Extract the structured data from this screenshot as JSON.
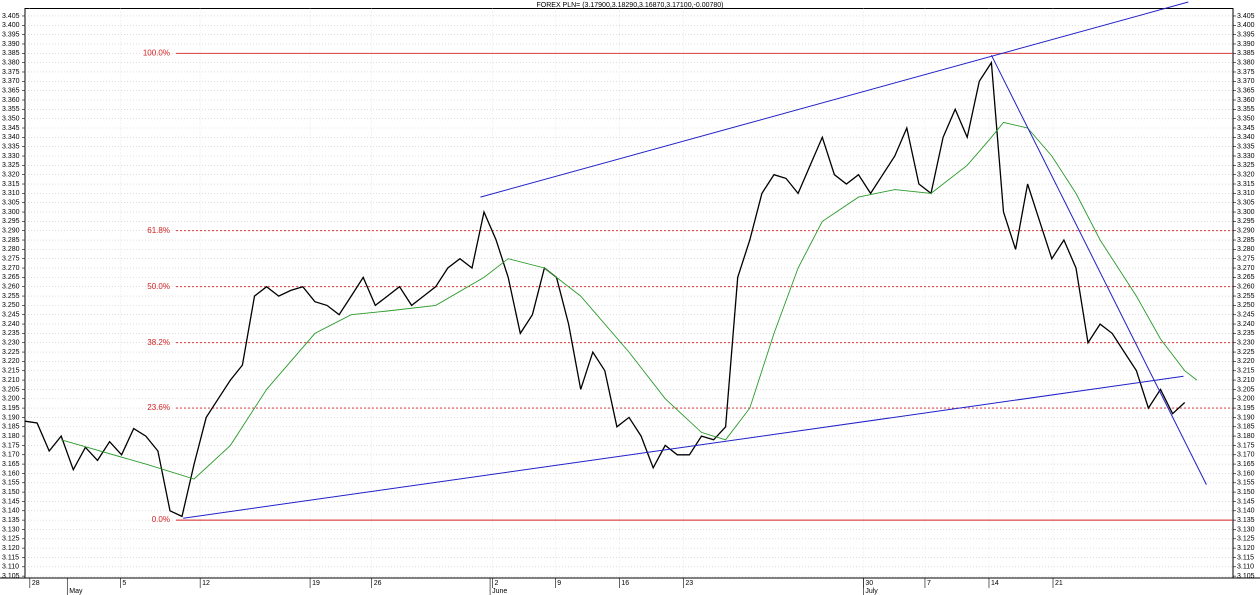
{
  "chart_data": {
    "type": "line",
    "title": "FOREX PLN= (3.17900,3.18290,3.16870,3.17100,-0.00780)",
    "xlim": [
      0,
      100
    ],
    "ylim": [
      3.104,
      3.409
    ],
    "xticks": [
      {
        "value": 0.4,
        "label": "28"
      },
      {
        "value": 7.9,
        "label": "5"
      },
      {
        "value": 14.5,
        "label": "12"
      },
      {
        "value": 23.6,
        "label": "19"
      },
      {
        "value": 28.7,
        "label": "26"
      },
      {
        "value": 38.7,
        "label": "2"
      },
      {
        "value": 43.9,
        "label": "9"
      },
      {
        "value": 49.2,
        "label": "16"
      },
      {
        "value": 54.5,
        "label": "23"
      },
      {
        "value": 69.4,
        "label": "30"
      },
      {
        "value": 74.5,
        "label": "7"
      },
      {
        "value": 79.8,
        "label": "14"
      },
      {
        "value": 85.1,
        "label": "21"
      }
    ],
    "month_ticks": [
      {
        "value": 3.5,
        "label": "May"
      },
      {
        "value": 38.5,
        "label": "June"
      },
      {
        "value": 69.4,
        "label": "July"
      }
    ],
    "yticks": [
      3.105,
      {
        "value": 3.11,
        "label": "3.110"
      },
      3.115,
      {
        "value": 3.12,
        "label": "3.120"
      },
      3.125,
      {
        "value": 3.13,
        "label": "3.130"
      },
      3.135,
      {
        "value": 3.14,
        "label": "3.140"
      },
      3.145,
      {
        "value": 3.15,
        "label": "3.150"
      },
      3.155,
      {
        "value": 3.16,
        "label": "3.160"
      },
      3.165,
      {
        "value": 3.17,
        "label": "3.170"
      },
      3.175,
      {
        "value": 3.18,
        "label": "3.180"
      },
      3.185,
      {
        "value": 3.19,
        "label": "3.190"
      },
      3.195,
      {
        "value": 3.2,
        "label": "3.200"
      },
      3.205,
      {
        "value": 3.21,
        "label": "3.210"
      },
      3.215,
      {
        "value": 3.22,
        "label": "3.220"
      },
      3.225,
      {
        "value": 3.23,
        "label": "3.230"
      },
      3.235,
      {
        "value": 3.24,
        "label": "3.240"
      },
      3.245,
      {
        "value": 3.25,
        "label": "3.250"
      },
      3.255,
      {
        "value": 3.26,
        "label": "3.260"
      },
      3.265,
      {
        "value": 3.27,
        "label": "3.270"
      },
      3.275,
      {
        "value": 3.28,
        "label": "3.280"
      },
      3.285,
      {
        "value": 3.29,
        "label": "3.290"
      },
      3.295,
      {
        "value": 3.3,
        "label": "3.300"
      },
      3.305,
      {
        "value": 3.31,
        "label": "3.310"
      },
      3.315,
      {
        "value": 3.32,
        "label": "3.320"
      },
      3.325,
      {
        "value": 3.33,
        "label": "3.330"
      },
      3.335,
      {
        "value": 3.34,
        "label": "3.340"
      },
      3.345,
      {
        "value": 3.35,
        "label": "3.350"
      },
      3.355,
      {
        "value": 3.36,
        "label": "3.360"
      },
      3.365,
      {
        "value": 3.37,
        "label": "3.370"
      },
      3.375,
      {
        "value": 3.38,
        "label": "3.380"
      },
      3.385,
      {
        "value": 3.39,
        "label": "3.390"
      },
      3.395,
      {
        "value": 3.4,
        "label": "3.400"
      },
      3.405
    ],
    "grid": true,
    "series": [
      {
        "color": "#000000",
        "x": [
          0,
          1,
          2,
          3,
          4,
          5,
          6,
          7,
          8,
          9,
          10,
          11,
          12,
          13,
          14,
          15,
          16,
          17,
          18,
          19,
          20,
          21,
          22,
          23,
          24,
          25,
          26,
          27,
          28,
          29,
          30,
          31,
          32,
          33,
          34,
          35,
          36,
          37,
          38,
          39,
          40,
          41,
          42,
          43,
          44,
          45,
          46,
          47,
          48,
          49,
          50,
          51,
          52,
          53,
          54,
          55,
          56,
          57,
          58,
          59,
          60,
          61,
          62,
          63,
          64,
          65,
          66,
          67,
          68,
          69,
          70,
          71,
          72,
          73,
          74,
          75,
          76,
          77,
          78,
          79,
          80,
          81,
          82,
          83,
          84,
          85,
          86,
          87,
          88,
          89,
          90,
          91,
          92,
          93,
          94,
          95,
          96
        ],
        "values": [
          3.188,
          3.187,
          3.172,
          3.18,
          3.162,
          3.174,
          3.167,
          3.177,
          3.17,
          3.184,
          3.18,
          3.172,
          3.14,
          3.137,
          3.165,
          3.19,
          3.2,
          3.21,
          3.218,
          3.255,
          3.26,
          3.255,
          3.258,
          3.26,
          3.252,
          3.25,
          3.245,
          3.255,
          3.265,
          3.25,
          3.255,
          3.26,
          3.25,
          3.255,
          3.26,
          3.27,
          3.275,
          3.27,
          3.3,
          3.285,
          3.265,
          3.235,
          3.245,
          3.27,
          3.265,
          3.24,
          3.205,
          3.225,
          3.215,
          3.185,
          3.19,
          3.18,
          3.163,
          3.175,
          3.17,
          3.17,
          3.18,
          3.178,
          3.185,
          3.265,
          3.285,
          3.31,
          3.32,
          3.318,
          3.31,
          3.325,
          3.34,
          3.32,
          3.315,
          3.32,
          3.31,
          3.32,
          3.33,
          3.345,
          3.315,
          3.31,
          3.34,
          3.355,
          3.34,
          3.37,
          3.38,
          3.3,
          3.28,
          3.315,
          3.295,
          3.275,
          3.285,
          3.27,
          3.23,
          3.24,
          3.235,
          3.225,
          3.215,
          3.195,
          3.205,
          3.192,
          3.198
        ]
      },
      {
        "color": "#2a9a2a",
        "x": [
          3,
          10,
          14,
          17,
          20,
          24,
          27,
          30,
          34,
          38,
          40,
          43,
          46,
          50,
          53,
          56,
          58,
          60,
          62,
          64,
          66,
          69,
          72,
          75,
          78,
          80,
          81,
          83,
          85,
          87,
          89,
          92,
          94,
          96,
          97
        ],
        "values": [
          3.178,
          3.165,
          3.157,
          3.175,
          3.205,
          3.235,
          3.245,
          3.247,
          3.25,
          3.265,
          3.275,
          3.27,
          3.255,
          3.225,
          3.2,
          3.182,
          3.178,
          3.195,
          3.235,
          3.27,
          3.295,
          3.308,
          3.312,
          3.31,
          3.325,
          3.34,
          3.348,
          3.345,
          3.33,
          3.31,
          3.285,
          3.255,
          3.232,
          3.215,
          3.21
        ]
      }
    ],
    "trend_lines": [
      {
        "color": "#2020c8",
        "x": [
          37.7,
          96.3
        ],
        "values": [
          3.308,
          3.4125
        ]
      },
      {
        "color": "#2020c8",
        "x": [
          13.1,
          95.9
        ],
        "values": [
          3.136,
          3.212
        ]
      },
      {
        "color": "#2020c8",
        "x": [
          80.0,
          97.8
        ],
        "values": [
          3.384,
          3.154
        ]
      }
    ],
    "fib_levels": [
      {
        "label": "100.0%",
        "price": 3.385,
        "style": "solid"
      },
      {
        "label": "61.8%",
        "price": 3.29,
        "style": "dotted"
      },
      {
        "label": "50.0%",
        "price": 3.26,
        "style": "dotted"
      },
      {
        "label": "38.2%",
        "price": 3.23,
        "style": "dotted"
      },
      {
        "label": "23.6%",
        "price": 3.195,
        "style": "dotted"
      },
      {
        "label": "0.0%",
        "price": 3.135,
        "style": "solid"
      }
    ],
    "fib_color": "#d42020"
  }
}
